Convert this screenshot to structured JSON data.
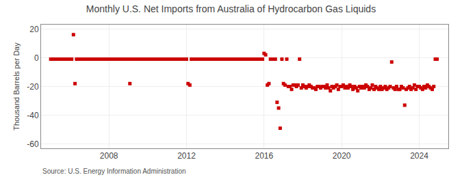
{
  "chart_data": {
    "type": "scatter",
    "title": "Monthly U.S. Net Imports from Australia of Hydrocarbon Gas Liquids",
    "ylabel": "Thousand Barrels per Day",
    "annotations": [
      "Source: U.S. Energy Information Administration"
    ],
    "color": "#cc0000",
    "marker": "square",
    "grid": true,
    "xlim": [
      2004.5,
      2025.5
    ],
    "xticks": [
      2008,
      2012,
      2016,
      2020,
      2024
    ],
    "ylim": [
      -63,
      23
    ],
    "yticks": [
      -60,
      -40,
      -20,
      0,
      20
    ],
    "x": [
      2005.0,
      2005.08,
      2005.17,
      2005.25,
      2005.33,
      2005.42,
      2005.5,
      2005.58,
      2005.67,
      2005.75,
      2005.83,
      2005.92,
      2006.0,
      2006.08,
      2006.17,
      2006.25,
      2006.33,
      2006.42,
      2006.5,
      2006.58,
      2006.67,
      2006.75,
      2006.83,
      2006.92,
      2007.0,
      2007.08,
      2007.17,
      2007.25,
      2007.33,
      2007.42,
      2007.5,
      2007.58,
      2007.67,
      2007.75,
      2007.83,
      2007.92,
      2008.0,
      2008.08,
      2008.17,
      2008.25,
      2008.33,
      2008.42,
      2008.5,
      2008.58,
      2008.67,
      2008.75,
      2008.83,
      2008.92,
      2009.0,
      2009.08,
      2009.17,
      2009.25,
      2009.33,
      2009.42,
      2009.5,
      2009.58,
      2009.67,
      2009.75,
      2009.83,
      2009.92,
      2010.0,
      2010.08,
      2010.17,
      2010.25,
      2010.33,
      2010.42,
      2010.5,
      2010.58,
      2010.67,
      2010.75,
      2010.83,
      2010.92,
      2011.0,
      2011.08,
      2011.17,
      2011.25,
      2011.33,
      2011.42,
      2011.5,
      2011.58,
      2011.67,
      2011.75,
      2011.83,
      2011.92,
      2012.0,
      2012.08,
      2012.17,
      2012.25,
      2012.33,
      2012.42,
      2012.5,
      2012.58,
      2012.67,
      2012.75,
      2012.83,
      2012.92,
      2013.0,
      2013.08,
      2013.17,
      2013.25,
      2013.33,
      2013.42,
      2013.5,
      2013.58,
      2013.67,
      2013.75,
      2013.83,
      2013.92,
      2014.0,
      2014.08,
      2014.17,
      2014.25,
      2014.33,
      2014.42,
      2014.5,
      2014.58,
      2014.67,
      2014.75,
      2014.83,
      2014.92,
      2015.0,
      2015.08,
      2015.17,
      2015.25,
      2015.33,
      2015.42,
      2015.5,
      2015.58,
      2015.67,
      2015.75,
      2015.83,
      2015.92,
      2016.0,
      2016.08,
      2016.17,
      2016.25,
      2016.33,
      2016.42,
      2016.5,
      2016.58,
      2016.67,
      2016.75,
      2016.83,
      2016.92,
      2017.0,
      2017.08,
      2017.17,
      2017.25,
      2017.33,
      2017.42,
      2017.5,
      2017.58,
      2017.67,
      2017.75,
      2017.83,
      2017.92,
      2018.0,
      2018.08,
      2018.17,
      2018.25,
      2018.33,
      2018.42,
      2018.5,
      2018.58,
      2018.67,
      2018.75,
      2018.83,
      2018.92,
      2019.0,
      2019.08,
      2019.17,
      2019.25,
      2019.33,
      2019.42,
      2019.5,
      2019.58,
      2019.67,
      2019.75,
      2019.83,
      2019.92,
      2020.0,
      2020.08,
      2020.17,
      2020.25,
      2020.33,
      2020.42,
      2020.5,
      2020.58,
      2020.67,
      2020.75,
      2020.83,
      2020.92,
      2021.0,
      2021.08,
      2021.17,
      2021.25,
      2021.33,
      2021.42,
      2021.5,
      2021.58,
      2021.67,
      2021.75,
      2021.83,
      2021.92,
      2022.0,
      2022.08,
      2022.17,
      2022.25,
      2022.33,
      2022.42,
      2022.5,
      2022.58,
      2022.67,
      2022.75,
      2022.83,
      2022.92,
      2023.0,
      2023.08,
      2023.17,
      2023.25,
      2023.33,
      2023.42,
      2023.5,
      2023.58,
      2023.67,
      2023.75,
      2023.83,
      2023.92,
      2024.0,
      2024.08,
      2024.17,
      2024.25,
      2024.33,
      2024.42,
      2024.5,
      2024.58,
      2024.67,
      2024.75,
      2024.83,
      2024.92
    ],
    "values": [
      -1,
      -1,
      -1,
      -1,
      -1,
      -1,
      -1,
      -1,
      -1,
      -1,
      -1,
      -1,
      -1,
      -1,
      16,
      -18,
      -1,
      -1,
      -1,
      -1,
      -1,
      -1,
      -1,
      -1,
      -1,
      -1,
      -1,
      -1,
      -1,
      -1,
      -1,
      -1,
      -1,
      -1,
      -1,
      -1,
      -1,
      -1,
      -1,
      -1,
      -1,
      -1,
      -1,
      -1,
      -1,
      -1,
      -1,
      -1,
      -1,
      -18,
      -1,
      -1,
      -1,
      -1,
      -1,
      -1,
      -1,
      -1,
      -1,
      -1,
      -1,
      -1,
      -1,
      -1,
      -1,
      -1,
      -1,
      -1,
      -1,
      -1,
      -1,
      -1,
      -1,
      -1,
      -1,
      -1,
      -1,
      -1,
      -1,
      -1,
      -1,
      -1,
      -1,
      -1,
      -1,
      -18,
      -19,
      -1,
      -1,
      -1,
      -1,
      -1,
      -1,
      -1,
      -1,
      -1,
      -1,
      -1,
      -1,
      -1,
      -1,
      -1,
      -1,
      -1,
      -1,
      -1,
      -1,
      -1,
      -1,
      -1,
      -1,
      -1,
      -1,
      -1,
      -1,
      -1,
      -1,
      -1,
      -1,
      -1,
      -1,
      -1,
      -1,
      -1,
      -1,
      -1,
      -1,
      -1,
      -1,
      -1,
      -1,
      -1,
      3,
      2,
      -19,
      -18,
      -1,
      -1,
      -1,
      -1,
      -31,
      -35,
      -49,
      -1,
      -18,
      -19,
      -1,
      -20,
      -20,
      -22,
      -19,
      -19,
      -20,
      -19,
      -1,
      -21,
      -19,
      -20,
      -21,
      -20,
      -19,
      -20,
      -21,
      -21,
      -22,
      -20,
      -20,
      -21,
      -20,
      -20,
      -21,
      -19,
      -21,
      -23,
      -20,
      -21,
      -20,
      -19,
      -22,
      -20,
      -20,
      -19,
      -21,
      -20,
      -21,
      -19,
      -20,
      -22,
      -20,
      -21,
      -23,
      -20,
      -21,
      -20,
      -21,
      -19,
      -20,
      -22,
      -21,
      -19,
      -22,
      -20,
      -21,
      -22,
      -20,
      -22,
      -21,
      -20,
      -22,
      -21,
      -20,
      -3,
      -21,
      -22,
      -20,
      -22,
      -22,
      -20,
      -21,
      -33,
      -22,
      -21,
      -20,
      -22,
      -21,
      -19,
      -22,
      -20,
      -20,
      -21,
      -22,
      -20,
      -21,
      -19,
      -20,
      -21,
      -22,
      -20,
      -1,
      -1
    ]
  }
}
